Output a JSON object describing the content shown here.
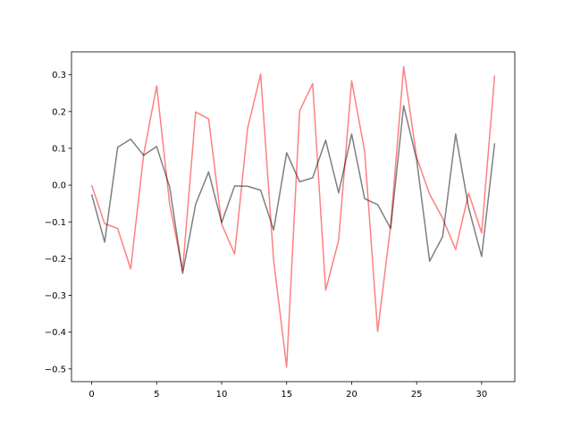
{
  "chart_data": {
    "type": "line",
    "title": "",
    "xlabel": "",
    "ylabel": "",
    "xlim": [
      -1.55,
      32.55
    ],
    "ylim": [
      -0.5345,
      0.3625
    ],
    "xticks": [
      0,
      5,
      10,
      15,
      20,
      25,
      30
    ],
    "yticks": [
      -0.5,
      -0.4,
      -0.3,
      -0.2,
      -0.1,
      0.0,
      0.1,
      0.2,
      0.3
    ],
    "ytick_labels": [
      "−0.5",
      "−0.4",
      "−0.3",
      "−0.2",
      "−0.1",
      "0.0",
      "0.1",
      "0.2",
      "0.3"
    ],
    "grid": false,
    "x": [
      0,
      1,
      2,
      3,
      4,
      5,
      6,
      7,
      8,
      9,
      10,
      11,
      12,
      13,
      14,
      15,
      16,
      17,
      18,
      19,
      20,
      21,
      22,
      23,
      24,
      25,
      26,
      27,
      28,
      29,
      30,
      31
    ],
    "series": [
      {
        "color": "#ff0000",
        "opacity": 0.5,
        "values": [
          0.0,
          -0.105,
          -0.118,
          -0.228,
          0.083,
          0.27,
          -0.052,
          -0.232,
          0.199,
          0.18,
          -0.106,
          -0.187,
          0.155,
          0.302,
          -0.205,
          -0.495,
          0.202,
          0.276,
          -0.286,
          -0.15,
          0.284,
          0.092,
          -0.398,
          -0.11,
          0.322,
          0.075,
          -0.025,
          -0.09,
          -0.175,
          -0.022,
          -0.13,
          0.298
        ]
      },
      {
        "color": "#000000",
        "opacity": 0.5,
        "values": [
          -0.025,
          -0.155,
          0.103,
          0.125,
          0.081,
          0.105,
          -0.005,
          -0.24,
          -0.052,
          0.036,
          -0.102,
          -0.002,
          -0.003,
          -0.014,
          -0.122,
          0.088,
          0.009,
          0.02,
          0.122,
          -0.021,
          0.139,
          -0.037,
          -0.053,
          -0.118,
          0.216,
          0.069,
          -0.207,
          -0.14,
          0.139,
          -0.062,
          -0.194,
          0.114
        ]
      }
    ]
  }
}
